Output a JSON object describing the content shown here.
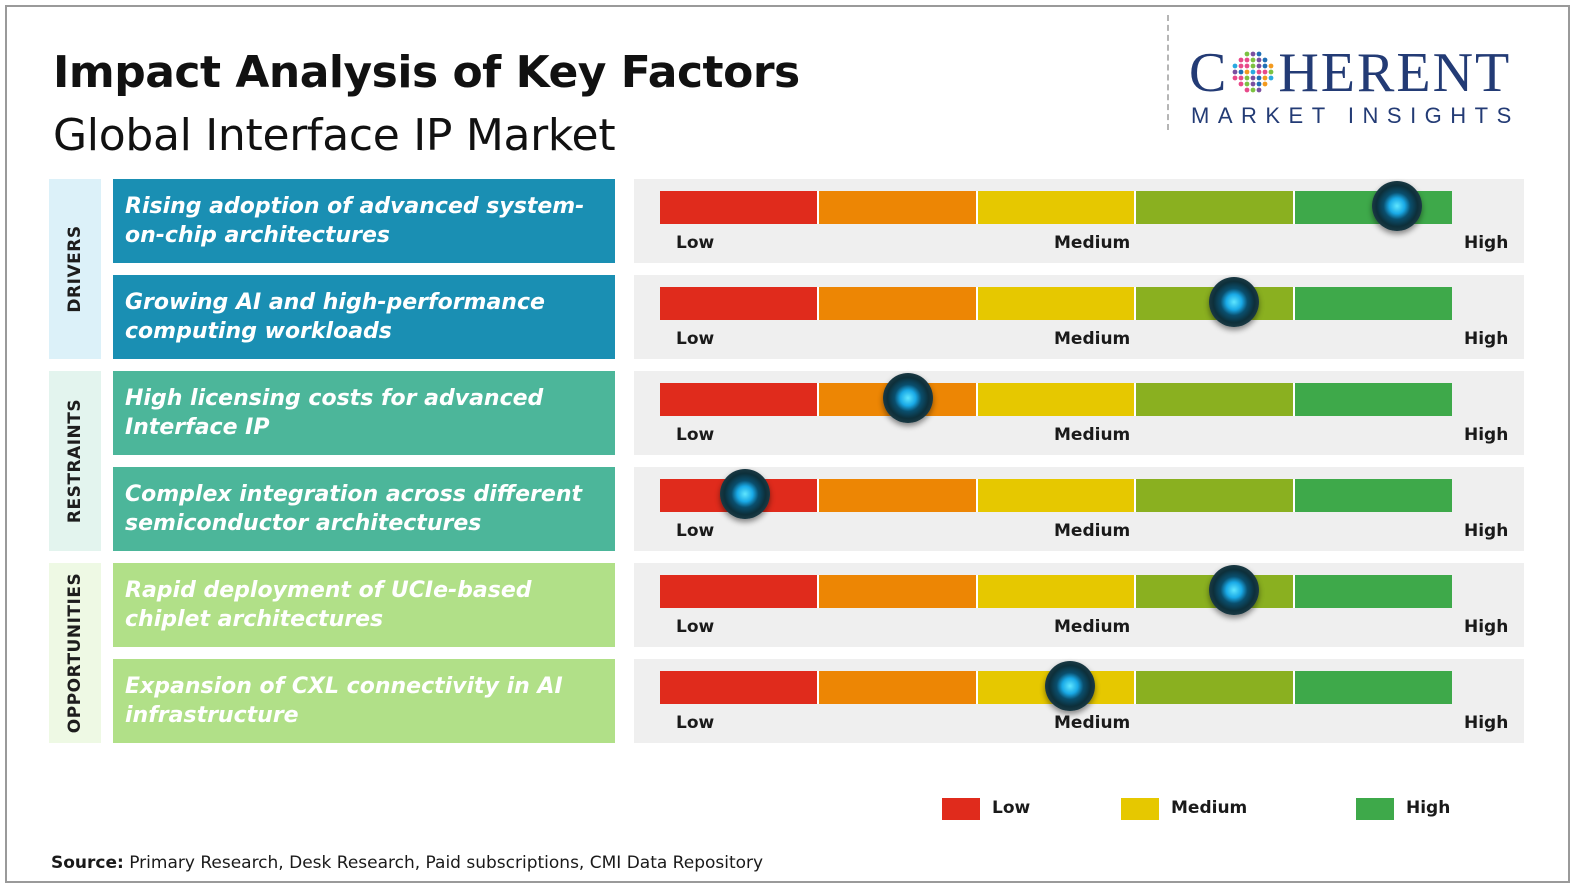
{
  "title": "Impact Analysis of Key Factors",
  "subtitle": "Global Interface IP Market",
  "logo": {
    "word_left": "C",
    "word_right": "HERENT",
    "tagline": "MARKET INSIGHTS"
  },
  "scale_labels": {
    "low": "Low",
    "medium": "Medium",
    "high": "High"
  },
  "colors": {
    "bar_segments": [
      "#e02b1c",
      "#ed8604",
      "#e6c800",
      "#8ab020",
      "#3ea94a"
    ],
    "drivers_box": "#1a8fb3",
    "drivers_tab": "#dcf1f9",
    "restraints_box": "#4cb69a",
    "restraints_tab": "#e3f4ee",
    "opportunities_box": "#b1e088",
    "opportunities_tab": "#eef9e4"
  },
  "chart_data": {
    "type": "table",
    "scale": [
      "Low",
      "Medium",
      "High"
    ],
    "groups": [
      {
        "name": "DRIVERS",
        "factors": [
          {
            "label": "Rising adoption of advanced system-on-chip architectures",
            "impact": 0.93
          },
          {
            "label": "Growing AI and high-performance computing workloads",
            "impact": 0.725
          }
        ]
      },
      {
        "name": "RESTRAINTS",
        "factors": [
          {
            "label": "High licensing costs for advanced Interface IP",
            "impact": 0.313
          },
          {
            "label": "Complex integration across different semiconductor architectures",
            "impact": 0.107
          }
        ]
      },
      {
        "name": "OPPORTUNITIES",
        "factors": [
          {
            "label": "Rapid deployment of UCIe-based chiplet architectures",
            "impact": 0.725
          },
          {
            "label": "Expansion of CXL connectivity in AI infrastructure",
            "impact": 0.518
          }
        ]
      }
    ],
    "legend": [
      {
        "label": "Low",
        "color": "#e02b1c"
      },
      {
        "label": "Medium",
        "color": "#e6c800"
      },
      {
        "label": "High",
        "color": "#3ea94a"
      }
    ]
  },
  "source": {
    "label": "Source:",
    "text": " Primary Research, Desk Research, Paid subscriptions, CMI Data Repository"
  }
}
